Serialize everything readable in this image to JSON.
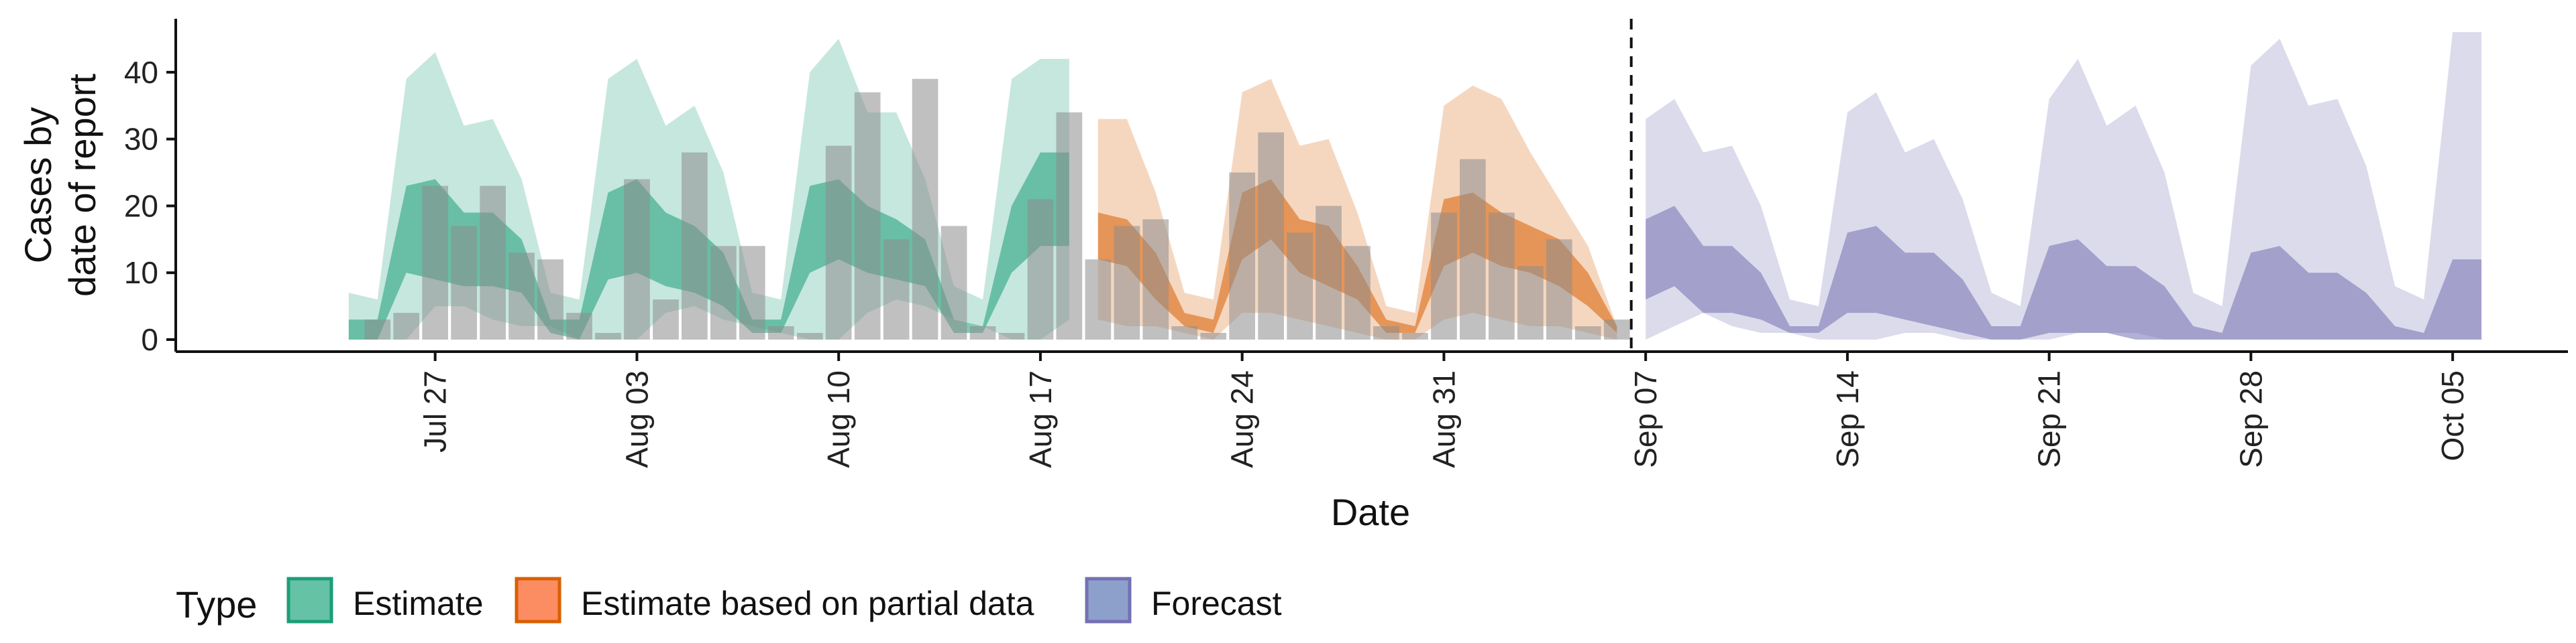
{
  "chart_data": {
    "type": "area",
    "xlabel": "Date",
    "ylabel_lines": [
      "Cases by",
      "date of report"
    ],
    "ylim": [
      0,
      48
    ],
    "yticks": [
      0,
      10,
      20,
      30,
      40
    ],
    "xlim": [
      "2021-07-18",
      "2021-10-09"
    ],
    "x_tick_dates": [
      "2021-07-27",
      "2021-08-03",
      "2021-08-10",
      "2021-08-17",
      "2021-08-24",
      "2021-08-31",
      "2021-09-07",
      "2021-09-14",
      "2021-09-21",
      "2021-09-28",
      "2021-10-05"
    ],
    "x_tick_labels": [
      "Jul 27",
      "Aug 03",
      "Aug 10",
      "Aug 17",
      "Aug 24",
      "Aug 31",
      "Sep 07",
      "Sep 14",
      "Sep 21",
      "Sep 28",
      "Oct 05"
    ],
    "forecast_date": "2021-09-06",
    "observed": {
      "color": "#b3b3b3",
      "dates": [
        "2021-07-25",
        "2021-07-26",
        "2021-07-27",
        "2021-07-28",
        "2021-07-29",
        "2021-07-30",
        "2021-07-31",
        "2021-08-01",
        "2021-08-02",
        "2021-08-03",
        "2021-08-04",
        "2021-08-05",
        "2021-08-06",
        "2021-08-07",
        "2021-08-08",
        "2021-08-09",
        "2021-08-10",
        "2021-08-11",
        "2021-08-12",
        "2021-08-13",
        "2021-08-14",
        "2021-08-15",
        "2021-08-16",
        "2021-08-17",
        "2021-08-18",
        "2021-08-19",
        "2021-08-20",
        "2021-08-21",
        "2021-08-22",
        "2021-08-23",
        "2021-08-24",
        "2021-08-25",
        "2021-08-26",
        "2021-08-27",
        "2021-08-28",
        "2021-08-29",
        "2021-08-30",
        "2021-08-31",
        "2021-09-01",
        "2021-09-02",
        "2021-09-03",
        "2021-09-04",
        "2021-09-05",
        "2021-09-06"
      ],
      "values": [
        3,
        4,
        23,
        17,
        23,
        13,
        12,
        4,
        1,
        24,
        6,
        28,
        14,
        14,
        2,
        1,
        29,
        37,
        15,
        39,
        17,
        2,
        1,
        21,
        34,
        12,
        17,
        18,
        2,
        1,
        25,
        31,
        16,
        20,
        14,
        2,
        1,
        19,
        27,
        19,
        11,
        15,
        2,
        3
      ]
    },
    "series": [
      {
        "name": "Estimate",
        "color": "#1b9e77",
        "fill_color": "#66c2a5",
        "dates": [
          "2021-07-24",
          "2021-07-25",
          "2021-07-26",
          "2021-07-27",
          "2021-07-28",
          "2021-07-29",
          "2021-07-30",
          "2021-07-31",
          "2021-08-01",
          "2021-08-02",
          "2021-08-03",
          "2021-08-04",
          "2021-08-05",
          "2021-08-06",
          "2021-08-07",
          "2021-08-08",
          "2021-08-09",
          "2021-08-10",
          "2021-08-11",
          "2021-08-12",
          "2021-08-13",
          "2021-08-14",
          "2021-08-15",
          "2021-08-16",
          "2021-08-17",
          "2021-08-18"
        ],
        "lower90": [
          0,
          0,
          0,
          5,
          5,
          3,
          2,
          2,
          0,
          0,
          0,
          4,
          5,
          3,
          2,
          1,
          0,
          0,
          4,
          6,
          5,
          3,
          2,
          0,
          0,
          3
        ],
        "upper90": [
          7,
          6,
          39,
          43,
          32,
          33,
          24,
          7,
          6,
          39,
          42,
          32,
          35,
          25,
          7,
          6,
          40,
          45,
          34,
          34,
          24,
          8,
          6,
          39,
          42,
          42
        ],
        "lower50": [
          0,
          0,
          10,
          9,
          8,
          8,
          7,
          1,
          0,
          9,
          10,
          8,
          7,
          5,
          1,
          1,
          10,
          12,
          10,
          9,
          8,
          1,
          1,
          10,
          14,
          14
        ],
        "upper50": [
          3,
          3,
          23,
          24,
          19,
          19,
          15,
          3,
          3,
          22,
          24,
          19,
          17,
          13,
          3,
          3,
          23,
          24,
          20,
          18,
          15,
          3,
          2,
          20,
          28,
          28
        ]
      },
      {
        "name": "Estimate based on partial data",
        "color": "#d95f02",
        "fill_color": "#fc8d62",
        "dates": [
          "2021-08-19",
          "2021-08-20",
          "2021-08-21",
          "2021-08-22",
          "2021-08-23",
          "2021-08-24",
          "2021-08-25",
          "2021-08-26",
          "2021-08-27",
          "2021-08-28",
          "2021-08-29",
          "2021-08-30",
          "2021-08-31",
          "2021-09-01",
          "2021-09-02",
          "2021-09-03",
          "2021-09-04",
          "2021-09-05",
          "2021-09-06"
        ],
        "lower90": [
          3,
          2,
          2,
          1,
          0,
          4,
          4,
          3,
          2,
          1,
          0,
          0,
          3,
          4,
          3,
          2,
          2,
          1,
          0
        ],
        "upper90": [
          33,
          33,
          22,
          7,
          6,
          37,
          39,
          29,
          30,
          19,
          5,
          4,
          35,
          38,
          36,
          28,
          21,
          14,
          2
        ],
        "lower50": [
          12,
          11,
          6,
          2,
          1,
          12,
          15,
          10,
          8,
          6,
          1,
          1,
          11,
          13,
          11,
          10,
          8,
          5,
          1
        ],
        "upper50": [
          19,
          18,
          13,
          4,
          3,
          22,
          24,
          18,
          17,
          11,
          3,
          2,
          21,
          22,
          19,
          17,
          15,
          10,
          2
        ]
      },
      {
        "name": "Forecast",
        "color": "#7570b3",
        "fill_color": "#8da0cb",
        "dates": [
          "2021-09-07",
          "2021-09-08",
          "2021-09-09",
          "2021-09-10",
          "2021-09-11",
          "2021-09-12",
          "2021-09-13",
          "2021-09-14",
          "2021-09-15",
          "2021-09-16",
          "2021-09-17",
          "2021-09-18",
          "2021-09-19",
          "2021-09-20",
          "2021-09-21",
          "2021-09-22",
          "2021-09-23",
          "2021-09-24",
          "2021-09-25",
          "2021-09-26",
          "2021-09-27",
          "2021-09-28",
          "2021-09-29",
          "2021-09-30",
          "2021-10-01",
          "2021-10-02",
          "2021-10-03",
          "2021-10-04",
          "2021-10-05",
          "2021-10-06"
        ],
        "lower90": [
          0,
          2,
          4,
          2,
          1,
          1,
          0,
          0,
          0,
          1,
          1,
          0,
          0,
          0,
          0,
          1,
          1,
          1,
          0,
          0,
          0,
          0,
          0,
          0,
          0,
          0,
          0,
          0,
          0,
          0
        ],
        "upper90": [
          33,
          36,
          28,
          29,
          20,
          6,
          5,
          34,
          37,
          28,
          30,
          21,
          7,
          5,
          36,
          42,
          32,
          35,
          25,
          7,
          5,
          41,
          45,
          35,
          36,
          26,
          8,
          6,
          46,
          46
        ],
        "lower50": [
          6,
          8,
          4,
          4,
          3,
          1,
          1,
          4,
          4,
          3,
          2,
          1,
          0,
          0,
          1,
          1,
          1,
          0,
          0,
          0,
          0,
          0,
          0,
          0,
          0,
          0,
          0,
          0,
          0,
          0
        ],
        "upper50": [
          18,
          20,
          14,
          14,
          10,
          2,
          2,
          16,
          17,
          13,
          13,
          9,
          2,
          2,
          14,
          15,
          11,
          11,
          8,
          2,
          1,
          13,
          14,
          10,
          10,
          7,
          2,
          1,
          12,
          12
        ]
      }
    ],
    "legend": {
      "title": "Type",
      "position": "bottom",
      "items": [
        "Estimate",
        "Estimate based on partial data",
        "Forecast"
      ]
    }
  }
}
